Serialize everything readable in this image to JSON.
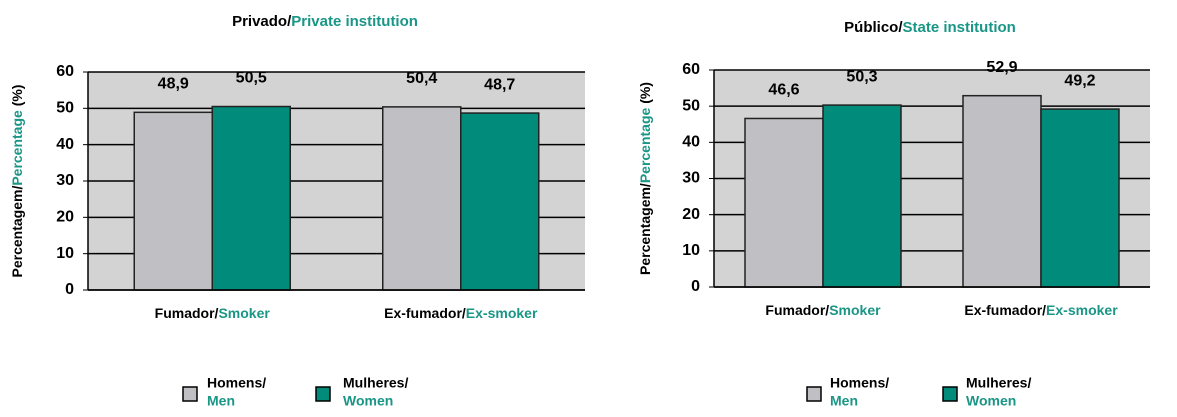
{
  "chart_data": [
    {
      "type": "bar",
      "title": [
        "Privado/",
        "Private institution"
      ],
      "y_label": [
        "Percentagem/",
        "Percentage",
        " (%)"
      ],
      "categories": [
        [
          "Fumador/",
          "Smoker"
        ],
        [
          "Ex-fumador/",
          "Ex-smoker"
        ]
      ],
      "series": [
        {
          "name": [
            "Homens/",
            "Men"
          ],
          "color": "#c0c0c4",
          "values": [
            48.9,
            50.4
          ],
          "value_labels": [
            "48,9",
            "50,4"
          ]
        },
        {
          "name": [
            "Mulheres/",
            "Women"
          ],
          "color": "#008b7a",
          "values": [
            50.5,
            48.7
          ],
          "value_labels": [
            "50,5",
            "48,7"
          ]
        }
      ],
      "ylim": [
        0,
        60
      ],
      "yticks": [
        0,
        10,
        20,
        30,
        40,
        50,
        60
      ],
      "grid": true
    },
    {
      "type": "bar",
      "title": [
        "Público/",
        "State institution"
      ],
      "y_label": [
        "Percentagem/",
        "Percentage",
        " (%)"
      ],
      "categories": [
        [
          "Fumador/",
          "Smoker"
        ],
        [
          "Ex-fumador/",
          "Ex-smoker"
        ]
      ],
      "series": [
        {
          "name": [
            "Homens/",
            "Men"
          ],
          "color": "#c0c0c4",
          "values": [
            46.6,
            52.9
          ],
          "value_labels": [
            "46,6",
            "52,9"
          ]
        },
        {
          "name": [
            "Mulheres/",
            "Women"
          ],
          "color": "#008b7a",
          "values": [
            50.3,
            49.2
          ],
          "value_labels": [
            "50,3",
            "49,2"
          ]
        }
      ],
      "ylim": [
        0,
        60
      ],
      "yticks": [
        0,
        10,
        20,
        30,
        40,
        50,
        60
      ],
      "grid": true
    }
  ]
}
